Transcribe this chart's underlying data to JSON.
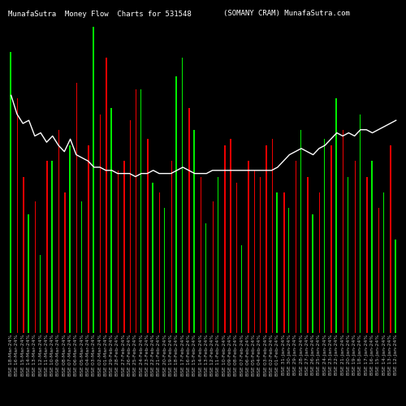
{
  "title_left": "MunafaSutra  Money Flow  Charts for 531548",
  "title_right": "(SOMANY CRAM) MunafaSutra.com",
  "bg_color": "#000000",
  "line_color": "#ffffff",
  "green_color": "#00ee00",
  "red_color": "#ee0000",
  "grid_color": "#3a2000",
  "n_bars": 66,
  "ylim": [
    0,
    100
  ],
  "tick_fontsize": 4.5,
  "title_fontsize": 6.5,
  "green_vals": [
    90,
    0,
    0,
    38,
    0,
    25,
    0,
    55,
    0,
    0,
    60,
    0,
    42,
    0,
    98,
    0,
    0,
    72,
    0,
    0,
    0,
    0,
    78,
    0,
    48,
    0,
    40,
    0,
    82,
    88,
    0,
    65,
    0,
    35,
    0,
    50,
    0,
    0,
    0,
    28,
    0,
    0,
    0,
    0,
    0,
    45,
    0,
    40,
    0,
    65,
    0,
    38,
    0,
    62,
    0,
    75,
    0,
    50,
    0,
    70,
    0,
    55,
    0,
    45,
    0,
    30
  ],
  "red_vals": [
    0,
    75,
    50,
    0,
    42,
    0,
    55,
    0,
    65,
    45,
    0,
    80,
    0,
    60,
    0,
    70,
    88,
    0,
    52,
    55,
    68,
    78,
    0,
    62,
    0,
    45,
    0,
    55,
    0,
    0,
    72,
    0,
    50,
    0,
    42,
    0,
    60,
    62,
    48,
    0,
    55,
    52,
    50,
    60,
    62,
    0,
    45,
    0,
    55,
    0,
    50,
    0,
    45,
    0,
    60,
    0,
    65,
    0,
    55,
    0,
    50,
    0,
    40,
    0,
    60,
    0
  ],
  "line_vals": [
    76,
    70,
    67,
    68,
    63,
    64,
    61,
    63,
    60,
    58,
    62,
    57,
    56,
    55,
    53,
    53,
    52,
    52,
    51,
    51,
    51,
    50,
    51,
    51,
    52,
    51,
    51,
    51,
    52,
    53,
    52,
    51,
    51,
    51,
    52,
    52,
    52,
    52,
    52,
    52,
    52,
    52,
    52,
    52,
    52,
    53,
    55,
    57,
    58,
    59,
    58,
    57,
    59,
    60,
    62,
    64,
    63,
    64,
    63,
    65,
    65,
    64,
    65,
    66,
    67,
    68
  ],
  "labels": [
    "BSE 18-Mar-24%",
    "BSE 16-Mar-24%",
    "BSE 15-Mar-24%",
    "BSE 14-Mar-24%",
    "BSE 13-Mar-24%",
    "BSE 12-Mar-24%",
    "BSE 11-Mar-24%",
    "BSE 10-Mar-24%",
    "BSE 09-Mar-24%",
    "BSE 08-Mar-24%",
    "BSE 07-Mar-24%",
    "BSE 06-Mar-24%",
    "BSE 05-Mar-24%",
    "BSE 04-Mar-24%",
    "BSE 03-Mar-24%",
    "BSE 02-Mar-24%",
    "BSE 01-Mar-24%",
    "BSE 29-Feb-24%",
    "BSE 28-Feb-24%",
    "BSE 27-Feb-24%",
    "BSE 26-Feb-24%",
    "BSE 25-Feb-24%",
    "BSE 24-Feb-24%",
    "BSE 23-Feb-24%",
    "BSE 22-Feb-24%",
    "BSE 21-Feb-24%",
    "BSE 20-Feb-24%",
    "BSE 19-Feb-24%",
    "BSE 18-Feb-24%",
    "BSE 17-Feb-24%",
    "BSE 16-Feb-24%",
    "BSE 15-Feb-24%",
    "BSE 14-Feb-24%",
    "BSE 13-Feb-24%",
    "BSE 12-Feb-24%",
    "BSE 11-Feb-24%",
    "BSE 10-Feb-24%",
    "BSE 09-Feb-24%",
    "BSE 08-Feb-24%",
    "BSE 07-Feb-24%",
    "BSE 06-Feb-24%",
    "BSE 05-Feb-24%",
    "BSE 04-Feb-24%",
    "BSE 03-Feb-24%",
    "BSE 02-Feb-24%",
    "BSE 01-Feb-24%",
    "BSE 31-Jan-24%",
    "BSE 30-Jan-24%",
    "BSE 29-Jan-24%",
    "BSE 28-Jan-24%",
    "BSE 27-Jan-24%",
    "BSE 26-Jan-24%",
    "BSE 25-Jan-24%",
    "BSE 24-Jan-24%",
    "BSE 23-Jan-24%",
    "BSE 22-Jan-24%",
    "BSE 21-Jan-24%",
    "BSE 20-Jan-24%",
    "BSE 19-Jan-24%",
    "BSE 18-Jan-24%",
    "BSE 17-Jan-24%",
    "BSE 16-Jan-24%",
    "BSE 15-Jan-24%",
    "BSE 14-Jan-24%",
    "BSE 13-Jan-24%",
    "BSE 12-Jan-24%"
  ]
}
